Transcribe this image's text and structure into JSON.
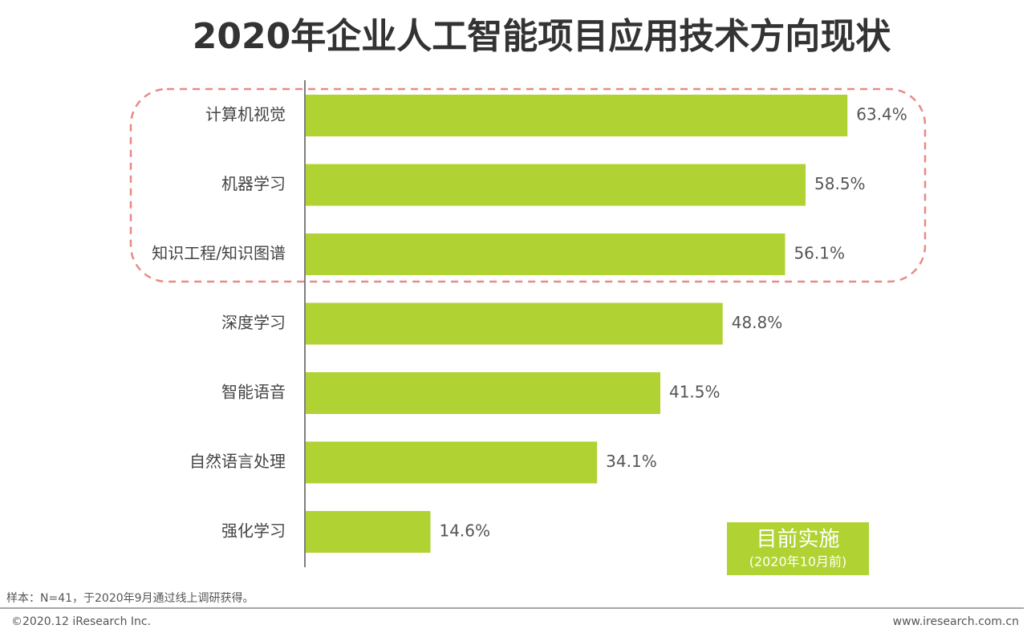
{
  "chart_data": {
    "type": "bar",
    "orientation": "horizontal",
    "title": "2020年企业人工智能项目应用技术方向现状",
    "categories": [
      "计算机视觉",
      "机器学习",
      "知识工程/知识图谱",
      "深度学习",
      "智能语音",
      "自然语言处理",
      "强化学习"
    ],
    "series": [
      {
        "name": "目前实施",
        "color": "#b0d232",
        "values": [
          63.4,
          58.5,
          56.1,
          48.8,
          41.5,
          34.1,
          14.6
        ],
        "value_labels": [
          "63.4%",
          "58.5%",
          "56.1%",
          "48.8%",
          "41.5%",
          "34.1%",
          "14.6%"
        ]
      }
    ],
    "legend_note": "(2020年10月前)",
    "note": "样本：N=41，于2020年9月通过线上调研获得。",
    "copyright": "©2020.12 iResearch Inc.",
    "website": "www.iresearch.com.cn"
  }
}
